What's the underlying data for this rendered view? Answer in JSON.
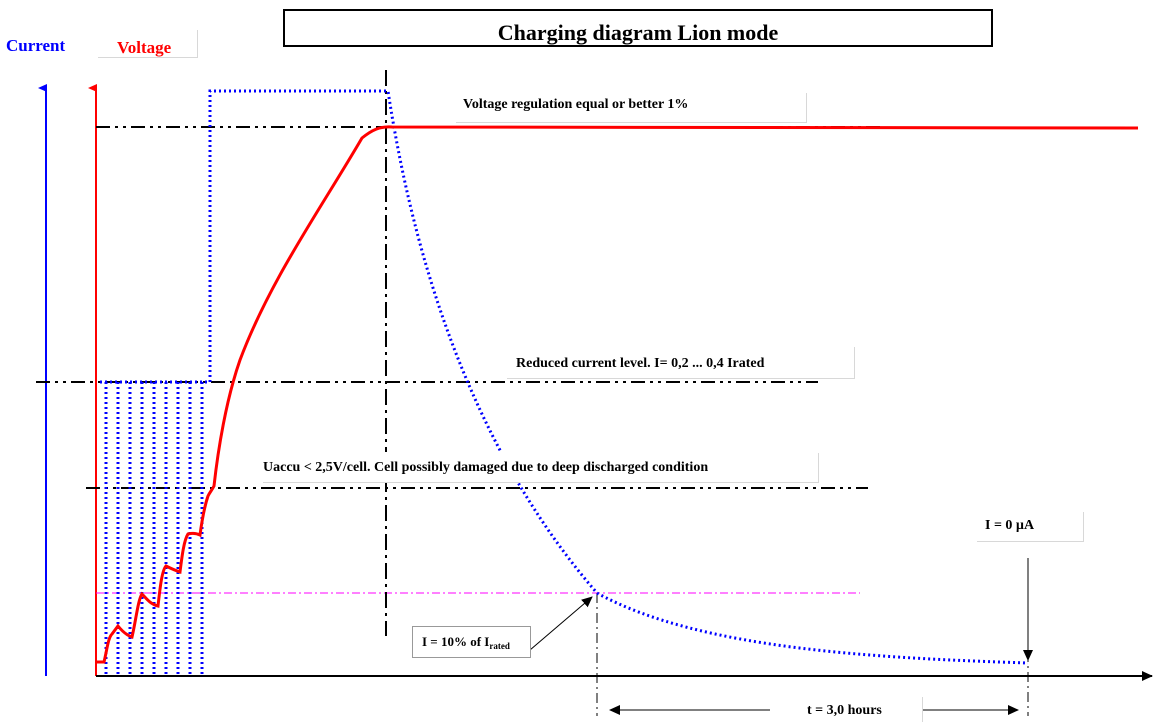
{
  "title": "Charging diagram Lion mode",
  "axes": {
    "current_label": "Current",
    "voltage_label": "Voltage",
    "current_color": "#0000ff",
    "voltage_color": "#ff0000"
  },
  "annotations": {
    "voltage_regulation": "Voltage regulation equal or better 1%",
    "reduced_current": "Reduced current level. I= 0,2 ... 0,4 Irated",
    "deep_discharge": "Uaccu < 2,5V/cell. Cell possibly damaged due to deep discharged condition",
    "zero_current": "I = 0 µA",
    "ten_percent_prefix": "I = 10% of I",
    "ten_percent_sub": "rated",
    "duration": "t = 3,0 hours"
  },
  "colors": {
    "current_curve": "#0000ff",
    "voltage_curve": "#ff0000",
    "reference_lines": "#000000",
    "ten_percent_line": "#ff00ff"
  }
}
